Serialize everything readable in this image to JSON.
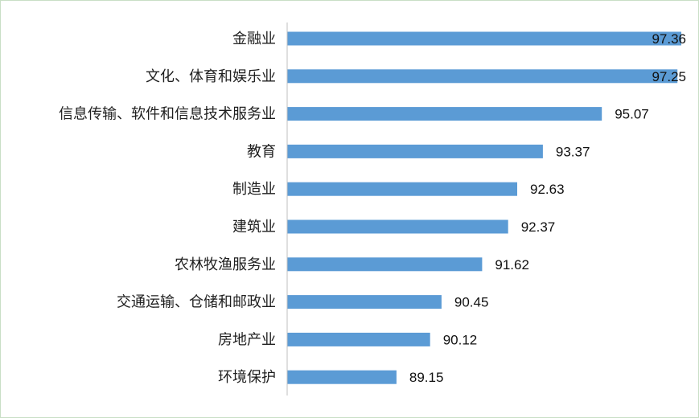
{
  "chart_data": {
    "type": "bar",
    "orientation": "horizontal",
    "categories": [
      "金融业",
      "文化、体育和娱乐业",
      "信息传输、软件和信息技术服务业",
      "教育",
      "制造业",
      "建筑业",
      "农林牧渔服务业",
      "交通运输、仓储和邮政业",
      "房地产业",
      "环境保护"
    ],
    "values": [
      97.36,
      97.25,
      95.07,
      93.37,
      92.63,
      92.37,
      91.62,
      90.45,
      90.12,
      89.15
    ],
    "value_labels": [
      "97.36",
      "97.25",
      "95.07",
      "93.37",
      "92.63",
      "92.37",
      "91.62",
      "90.45",
      "90.12",
      "89.15"
    ],
    "xlim": [
      86,
      97.5
    ],
    "grid": false,
    "legend": "none",
    "bar_color": "#5b9bd5",
    "axis_color": "#bfbfbf",
    "title": "",
    "xlabel": "",
    "ylabel": ""
  }
}
